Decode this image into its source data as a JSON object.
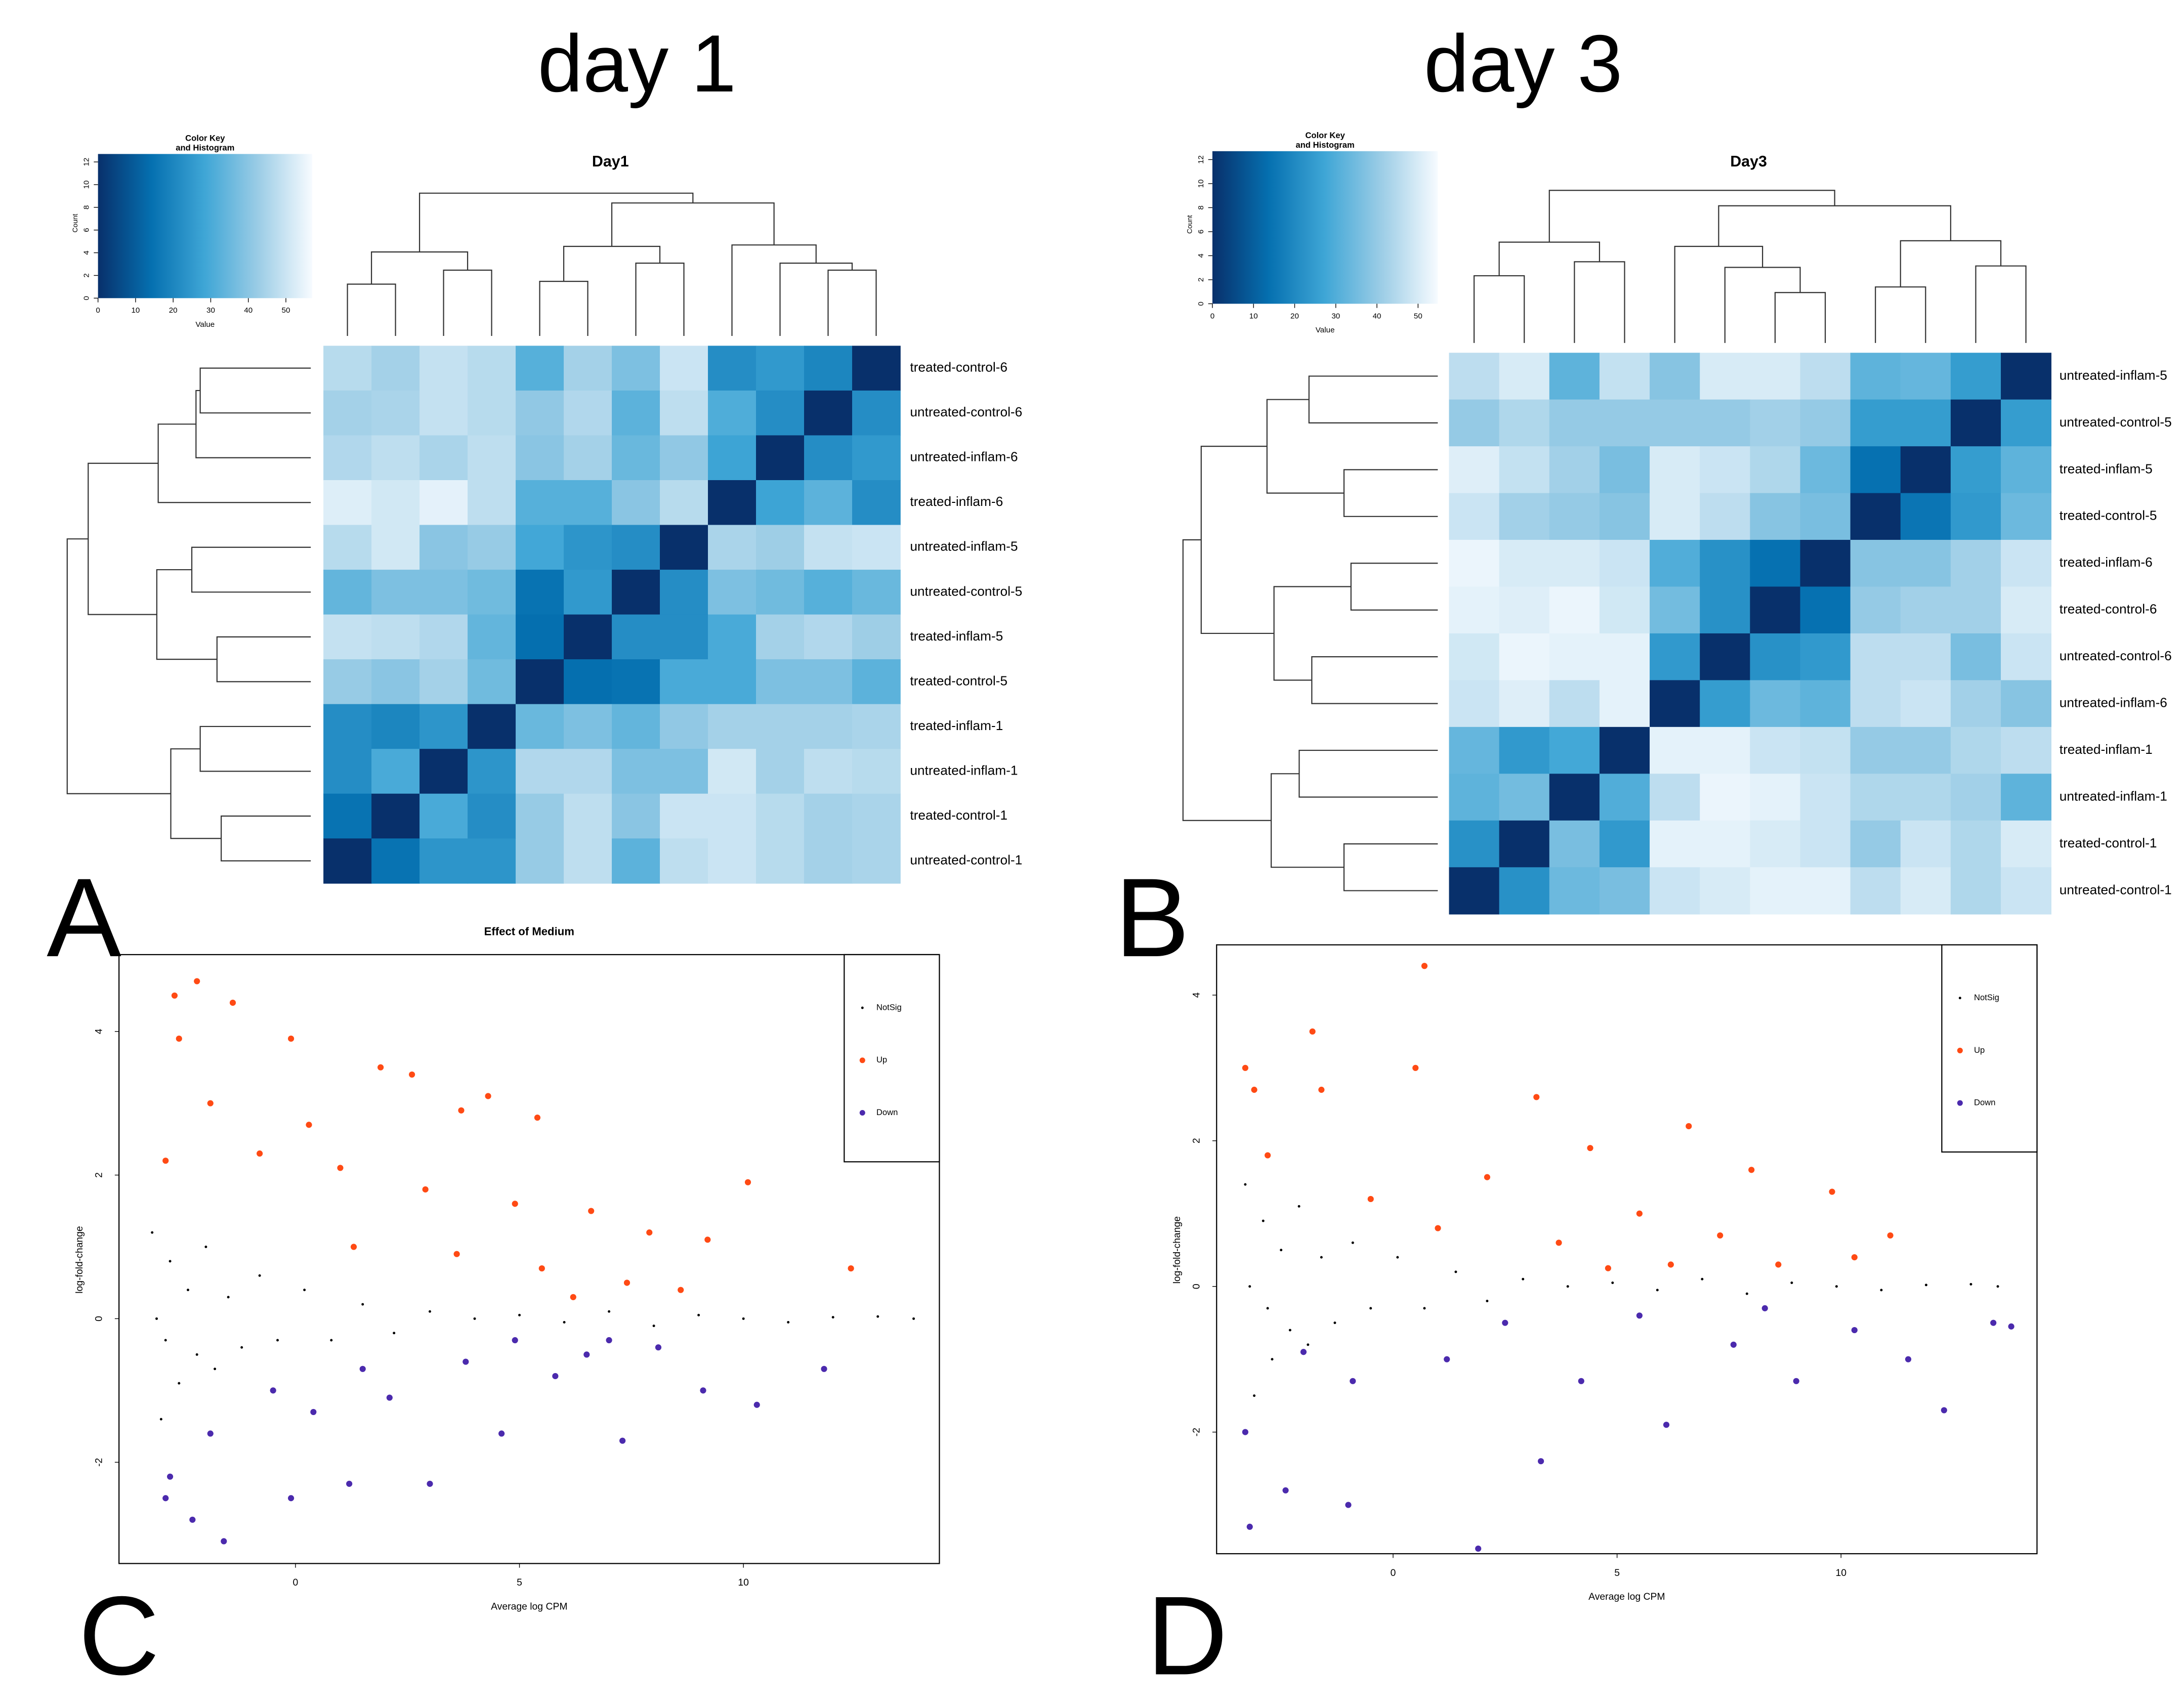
{
  "chart_data": [
    {
      "type": "heatmap",
      "heading": "day 1",
      "title": "Day1",
      "panel": "A",
      "rows": [
        "treated-control-6",
        "untreated-control-6",
        "untreated-inflam-6",
        "treated-inflam-6",
        "untreated-inflam-5",
        "untreated-control-5",
        "treated-inflam-5",
        "treated-control-5",
        "treated-inflam-1",
        "untreated-inflam-1",
        "treated-control-1",
        "untreated-control-1"
      ],
      "values": [
        [
          47,
          44,
          49,
          47,
          32,
          44,
          38,
          50,
          22,
          25,
          20,
          0
        ],
        [
          44,
          45,
          49,
          47,
          41,
          46,
          33,
          48,
          31,
          22,
          0,
          22
        ],
        [
          46,
          48,
          45,
          48,
          40,
          44,
          35,
          41,
          28,
          0,
          22,
          25
        ],
        [
          53,
          51,
          54,
          48,
          32,
          32,
          40,
          47,
          0,
          28,
          33,
          22
        ],
        [
          47,
          51,
          40,
          42,
          29,
          24,
          22,
          0,
          45,
          43,
          49,
          50
        ],
        [
          34,
          38,
          38,
          36,
          15,
          25,
          0,
          22,
          38,
          36,
          32,
          35
        ],
        [
          49,
          48,
          46,
          34,
          14,
          0,
          22,
          22,
          30,
          44,
          46,
          43
        ],
        [
          42,
          40,
          44,
          36,
          0,
          14,
          15,
          30,
          30,
          38,
          38,
          33
        ],
        [
          22,
          20,
          24,
          0,
          35,
          38,
          34,
          41,
          44,
          44,
          44,
          45
        ],
        [
          22,
          30,
          0,
          24,
          46,
          46,
          38,
          38,
          51,
          44,
          48,
          47
        ],
        [
          15,
          0,
          30,
          22,
          42,
          48,
          40,
          50,
          50,
          47,
          44,
          45
        ],
        [
          0,
          15,
          24,
          24,
          42,
          48,
          33,
          48,
          50,
          47,
          44,
          45
        ]
      ],
      "color_key": {
        "title": [
          "Color Key",
          "and Histogram"
        ],
        "xlabel": "Value",
        "ylabel": "Count",
        "xlim": [
          0,
          57
        ],
        "xticks": [
          0,
          10,
          20,
          30,
          40,
          50
        ],
        "ylim": [
          0,
          12.7
        ],
        "yticks": [
          0,
          2,
          4,
          6,
          8,
          10,
          12
        ],
        "colors": [
          "#08306b",
          "#0570b0",
          "#3fa6d6",
          "#9ccde6",
          "#f7fbff"
        ]
      }
    },
    {
      "type": "heatmap",
      "heading": "day 3",
      "title": "Day3",
      "panel": "B",
      "rows": [
        "untreated-inflam-5",
        "untreated-control-5",
        "treated-inflam-5",
        "treated-control-5",
        "treated-inflam-6",
        "treated-control-6",
        "untreated-control-6",
        "untreated-inflam-6",
        "treated-inflam-1",
        "untreated-inflam-1",
        "treated-control-1",
        "untreated-control-1"
      ],
      "values": [
        [
          46,
          50,
          32,
          47,
          38,
          50,
          50,
          46,
          32,
          33,
          25,
          0
        ],
        [
          40,
          44,
          40,
          40,
          40,
          40,
          42,
          40,
          25,
          25,
          0,
          25
        ],
        [
          51,
          47,
          42,
          36,
          50,
          48,
          44,
          34,
          14,
          0,
          25,
          32
        ],
        [
          48,
          42,
          40,
          38,
          50,
          46,
          38,
          36,
          0,
          15,
          24,
          34
        ],
        [
          53,
          50,
          50,
          48,
          30,
          22,
          14,
          0,
          38,
          38,
          42,
          48
        ],
        [
          52,
          51,
          53,
          49,
          35,
          22,
          0,
          14,
          40,
          42,
          42,
          50
        ],
        [
          49,
          53,
          52,
          52,
          24,
          0,
          22,
          24,
          46,
          46,
          36,
          48
        ],
        [
          48,
          51,
          46,
          52,
          0,
          25,
          34,
          32,
          46,
          48,
          42,
          38
        ],
        [
          33,
          24,
          28,
          0,
          52,
          52,
          48,
          47,
          40,
          40,
          44,
          46
        ],
        [
          32,
          35,
          0,
          30,
          46,
          53,
          52,
          48,
          44,
          44,
          42,
          32
        ],
        [
          22,
          0,
          36,
          24,
          52,
          52,
          50,
          48,
          40,
          48,
          44,
          50
        ],
        [
          0,
          22,
          34,
          36,
          48,
          50,
          52,
          52,
          46,
          50,
          44,
          48
        ]
      ],
      "color_key": {
        "title": [
          "Color Key",
          "and Histogram"
        ],
        "xlabel": "Value",
        "ylabel": "Count",
        "xlim": [
          0,
          54.8
        ],
        "xticks": [
          0,
          10,
          20,
          30,
          40,
          50
        ],
        "ylim": [
          0,
          12.7
        ],
        "yticks": [
          0,
          2,
          4,
          6,
          8,
          10,
          12
        ],
        "colors": [
          "#08306b",
          "#0570b0",
          "#3fa6d6",
          "#9ccde6",
          "#f7fbff"
        ]
      }
    },
    {
      "type": "scatter",
      "title": "Effect of Medium",
      "panel": "C",
      "xlabel": "Average log CPM",
      "ylabel": "log-fold-change",
      "xlim": [
        -3.94,
        14.375
      ],
      "ylim": [
        -3.41,
        5.07
      ],
      "xticks": [
        0,
        5,
        10
      ],
      "yticks": [
        -2,
        0,
        2,
        4
      ],
      "legend": "topright",
      "series": [
        {
          "name": "NotSig",
          "color": "#000000",
          "x": [
            -3.2,
            -3.0,
            -2.8,
            -2.6,
            -2.4,
            -2.2,
            -2.0,
            -1.8,
            -1.5,
            -1.2,
            -0.8,
            -0.4,
            0.2,
            0.8,
            1.5,
            2.2,
            3.0,
            4.0,
            5.0,
            6.0,
            7.0,
            8.0,
            9.0,
            10.0,
            11.0,
            12.0,
            13.0,
            13.8,
            -3.1,
            -2.9
          ],
          "values": [
            1.2,
            -1.4,
            0.8,
            -0.9,
            0.4,
            -0.5,
            1.0,
            -0.7,
            0.3,
            -0.4,
            0.6,
            -0.3,
            0.4,
            -0.3,
            0.2,
            -0.2,
            0.1,
            0.0,
            0.05,
            -0.05,
            0.1,
            -0.1,
            0.05,
            0.0,
            -0.05,
            0.02,
            0.03,
            0.0,
            0.0,
            -0.3
          ]
        },
        {
          "name": "Up",
          "color": "#ff4a14",
          "x": [
            -2.2,
            -1.4,
            -2.7,
            -2.6,
            -0.1,
            1.9,
            2.6,
            4.3,
            3.7,
            5.4,
            -1.9,
            0.3,
            -0.8,
            1.0,
            2.9,
            4.9,
            6.6,
            7.9,
            10.1,
            9.2,
            3.6,
            5.5,
            7.4,
            1.3,
            -2.9,
            6.2,
            8.6,
            12.4
          ],
          "values": [
            4.7,
            4.4,
            4.5,
            3.9,
            3.9,
            3.5,
            3.4,
            3.1,
            2.9,
            2.8,
            3.0,
            2.7,
            2.3,
            2.1,
            1.8,
            1.6,
            1.5,
            1.2,
            1.9,
            1.1,
            0.9,
            0.7,
            0.5,
            1.0,
            2.2,
            0.3,
            0.4,
            0.7
          ]
        },
        {
          "name": "Down",
          "color": "#4b2aad",
          "x": [
            -1.6,
            -2.8,
            -0.1,
            1.2,
            3.0,
            4.6,
            7.3,
            10.3,
            9.1,
            5.8,
            2.1,
            0.4,
            -1.9,
            -2.3,
            6.5,
            8.1,
            3.8,
            1.5,
            -0.5,
            11.8,
            4.9,
            7.0,
            -2.9
          ],
          "values": [
            -3.1,
            -2.2,
            -2.5,
            -2.3,
            -2.3,
            -1.6,
            -1.7,
            -1.2,
            -1.0,
            -0.8,
            -1.1,
            -1.3,
            -1.6,
            -2.8,
            -0.5,
            -0.4,
            -0.6,
            -0.7,
            -1.0,
            -0.7,
            -0.3,
            -0.3,
            -2.5
          ]
        }
      ]
    },
    {
      "type": "scatter",
      "panel": "D",
      "xlabel": "Average log CPM",
      "ylabel": "log-fold-change",
      "xlim": [
        -3.94,
        14.375
      ],
      "ylim": [
        -3.67,
        4.69
      ],
      "xticks": [
        0,
        5,
        10
      ],
      "yticks": [
        -2,
        0,
        2,
        4
      ],
      "legend": "topright",
      "series": [
        {
          "name": "NotSig",
          "color": "#000000",
          "x": [
            -3.3,
            -3.1,
            -2.9,
            -2.7,
            -2.5,
            -2.3,
            -2.1,
            -1.9,
            -1.6,
            -1.3,
            -0.9,
            -0.5,
            0.1,
            0.7,
            1.4,
            2.1,
            2.9,
            3.9,
            4.9,
            5.9,
            6.9,
            7.9,
            8.9,
            9.9,
            10.9,
            11.9,
            12.9,
            13.5,
            -3.2,
            -2.8
          ],
          "values": [
            1.4,
            -1.5,
            0.9,
            -1.0,
            0.5,
            -0.6,
            1.1,
            -0.8,
            0.4,
            -0.5,
            0.6,
            -0.3,
            0.4,
            -0.3,
            0.2,
            -0.2,
            0.1,
            0.0,
            0.05,
            -0.05,
            0.1,
            -0.1,
            0.05,
            0.0,
            -0.05,
            0.02,
            0.03,
            0.0,
            0.0,
            -0.3
          ]
        },
        {
          "name": "Up",
          "color": "#ff4a14",
          "x": [
            0.7,
            -1.8,
            -3.3,
            -3.1,
            0.5,
            3.2,
            -1.6,
            6.6,
            4.4,
            8.0,
            9.8,
            2.1,
            -0.5,
            5.5,
            7.3,
            3.7,
            1.0,
            -2.8,
            6.2,
            8.6,
            10.3,
            4.8,
            11.1
          ],
          "values": [
            4.4,
            3.5,
            3.0,
            2.7,
            3.0,
            2.6,
            2.7,
            2.2,
            1.9,
            1.6,
            1.3,
            1.5,
            1.2,
            1.0,
            0.7,
            0.6,
            0.8,
            1.8,
            0.3,
            0.3,
            0.4,
            0.25,
            0.7
          ]
        },
        {
          "name": "Down",
          "color": "#4b2aad",
          "x": [
            1.9,
            -1.0,
            -3.2,
            -2.4,
            -3.3,
            3.3,
            6.1,
            9.0,
            11.5,
            12.3,
            13.4,
            4.2,
            1.2,
            -0.9,
            7.6,
            10.3,
            5.5,
            2.5,
            -2.0,
            8.3,
            13.8
          ],
          "values": [
            -3.6,
            -3.0,
            -3.3,
            -2.8,
            -2.0,
            -2.4,
            -1.9,
            -1.3,
            -1.0,
            -1.7,
            -0.5,
            -1.3,
            -1.0,
            -1.3,
            -0.8,
            -0.6,
            -0.4,
            -0.5,
            -0.9,
            -0.3,
            -0.55
          ]
        }
      ]
    }
  ]
}
